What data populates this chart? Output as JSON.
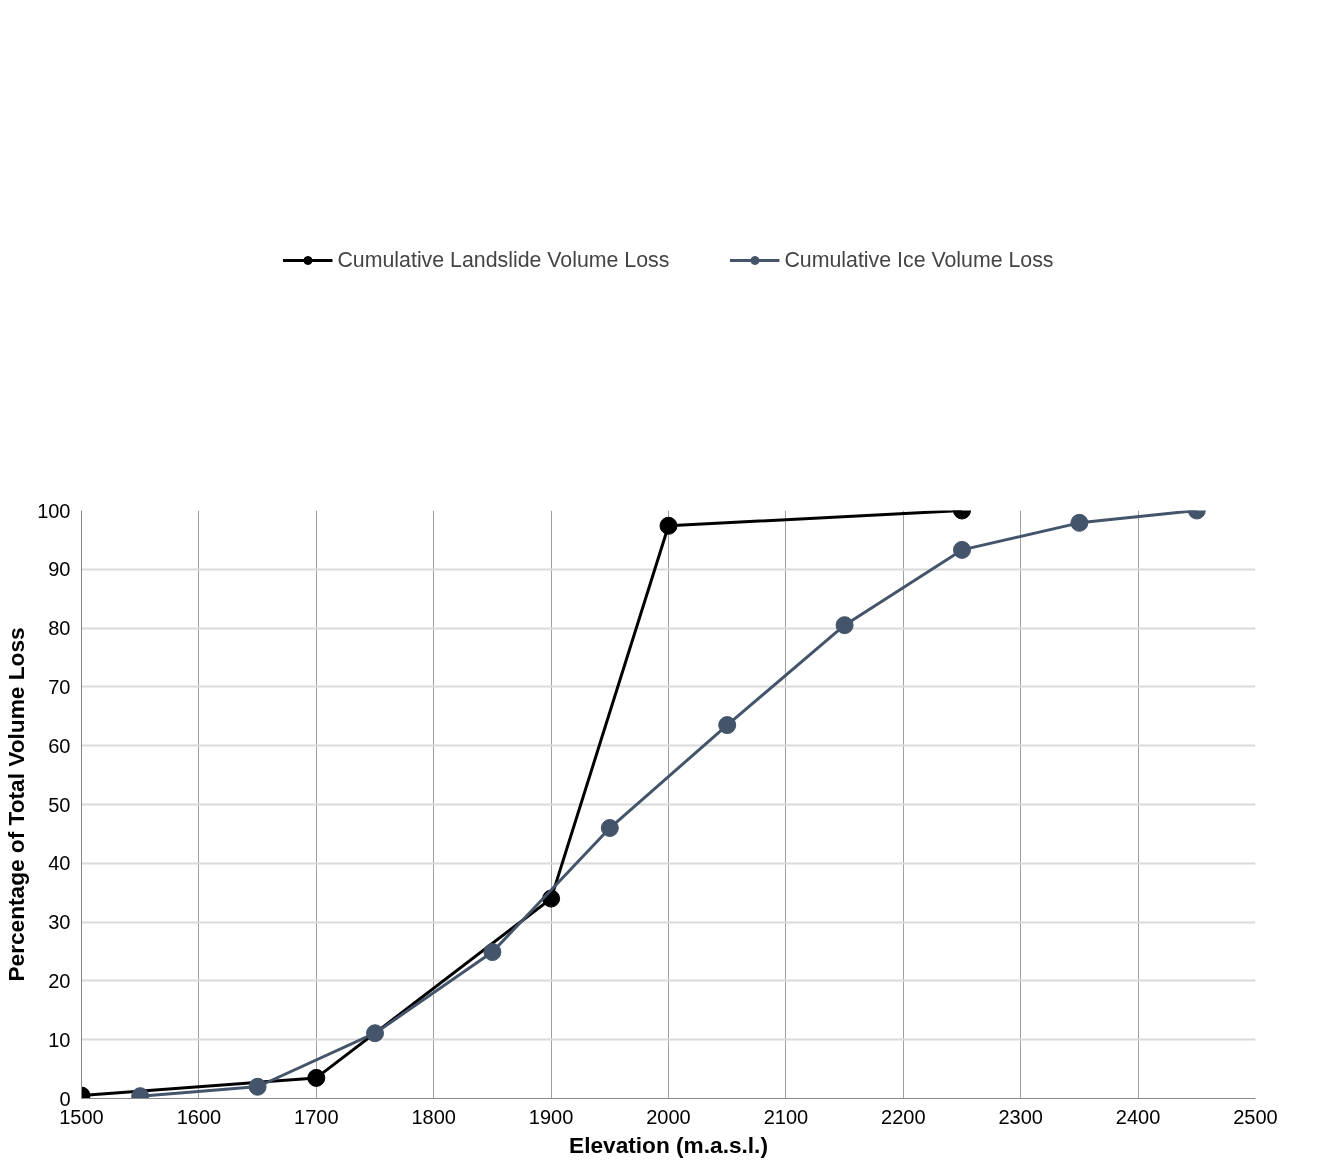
{
  "chart_data": {
    "type": "line",
    "xlabel": "Elevation (m.a.s.l.)",
    "ylabel": "Percentage of Total Volume Loss",
    "xlim": [
      1500,
      2500
    ],
    "xticks": [
      1500,
      1600,
      1700,
      1800,
      1900,
      2000,
      2100,
      2200,
      2300,
      2400,
      2500
    ],
    "ylim": [
      0,
      100
    ],
    "yticks": [
      0,
      10,
      20,
      30,
      40,
      50,
      60,
      70,
      80,
      90,
      100
    ],
    "grid": true,
    "legend": "top",
    "marker": "circle",
    "series": [
      {
        "name": "Cumulative Landslide Volume Loss",
        "color": "#000000",
        "x": [
          1500,
          1700,
          1900,
          2000,
          2250
        ],
        "values": [
          0.5,
          3.5,
          34,
          97.4,
          100
        ]
      },
      {
        "name": "Cumulative Ice Volume Loss",
        "color": "#44546a",
        "x": [
          1550,
          1650,
          1750,
          1850,
          1950,
          2050,
          2150,
          2250,
          2350,
          2450
        ],
        "values": [
          0.4,
          2.0,
          11.1,
          24.9,
          46.0,
          63.5,
          80.5,
          93.3,
          97.9,
          100
        ]
      }
    ]
  }
}
